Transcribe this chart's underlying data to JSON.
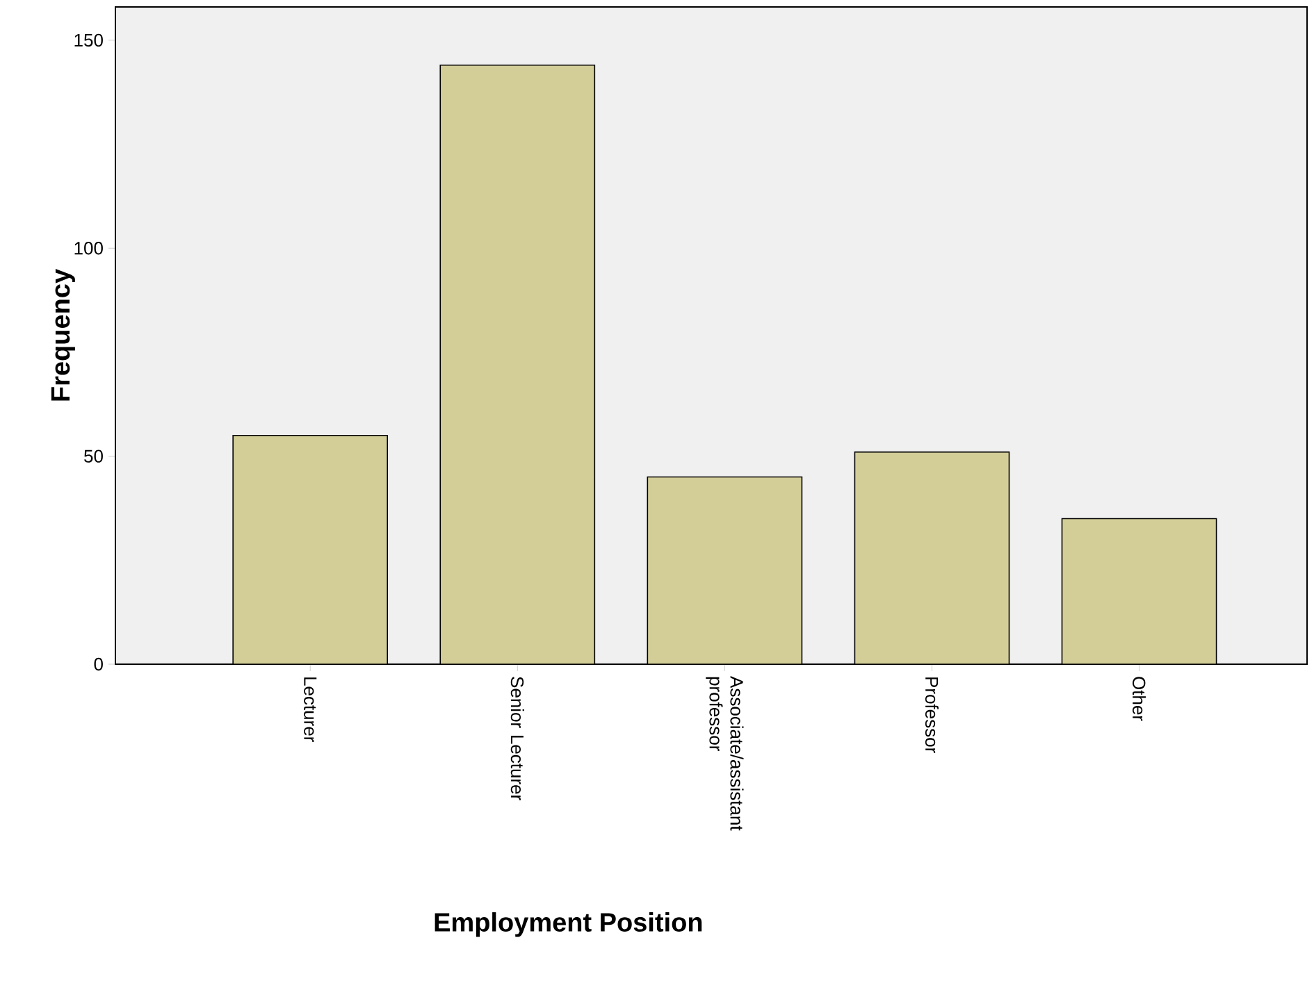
{
  "chart_data": {
    "type": "bar",
    "xlabel": "Employment Position",
    "ylabel": "Frequency",
    "categories": [
      "Lecturer",
      "Senior Lecturer",
      "Associate/assistant professor",
      "Professor",
      "Other"
    ],
    "values": [
      55,
      144,
      45,
      51,
      35
    ],
    "color": "#d3ce98",
    "ylim": [
      0,
      158
    ],
    "yticks": [
      0,
      50,
      100,
      150
    ],
    "grid": false
  }
}
